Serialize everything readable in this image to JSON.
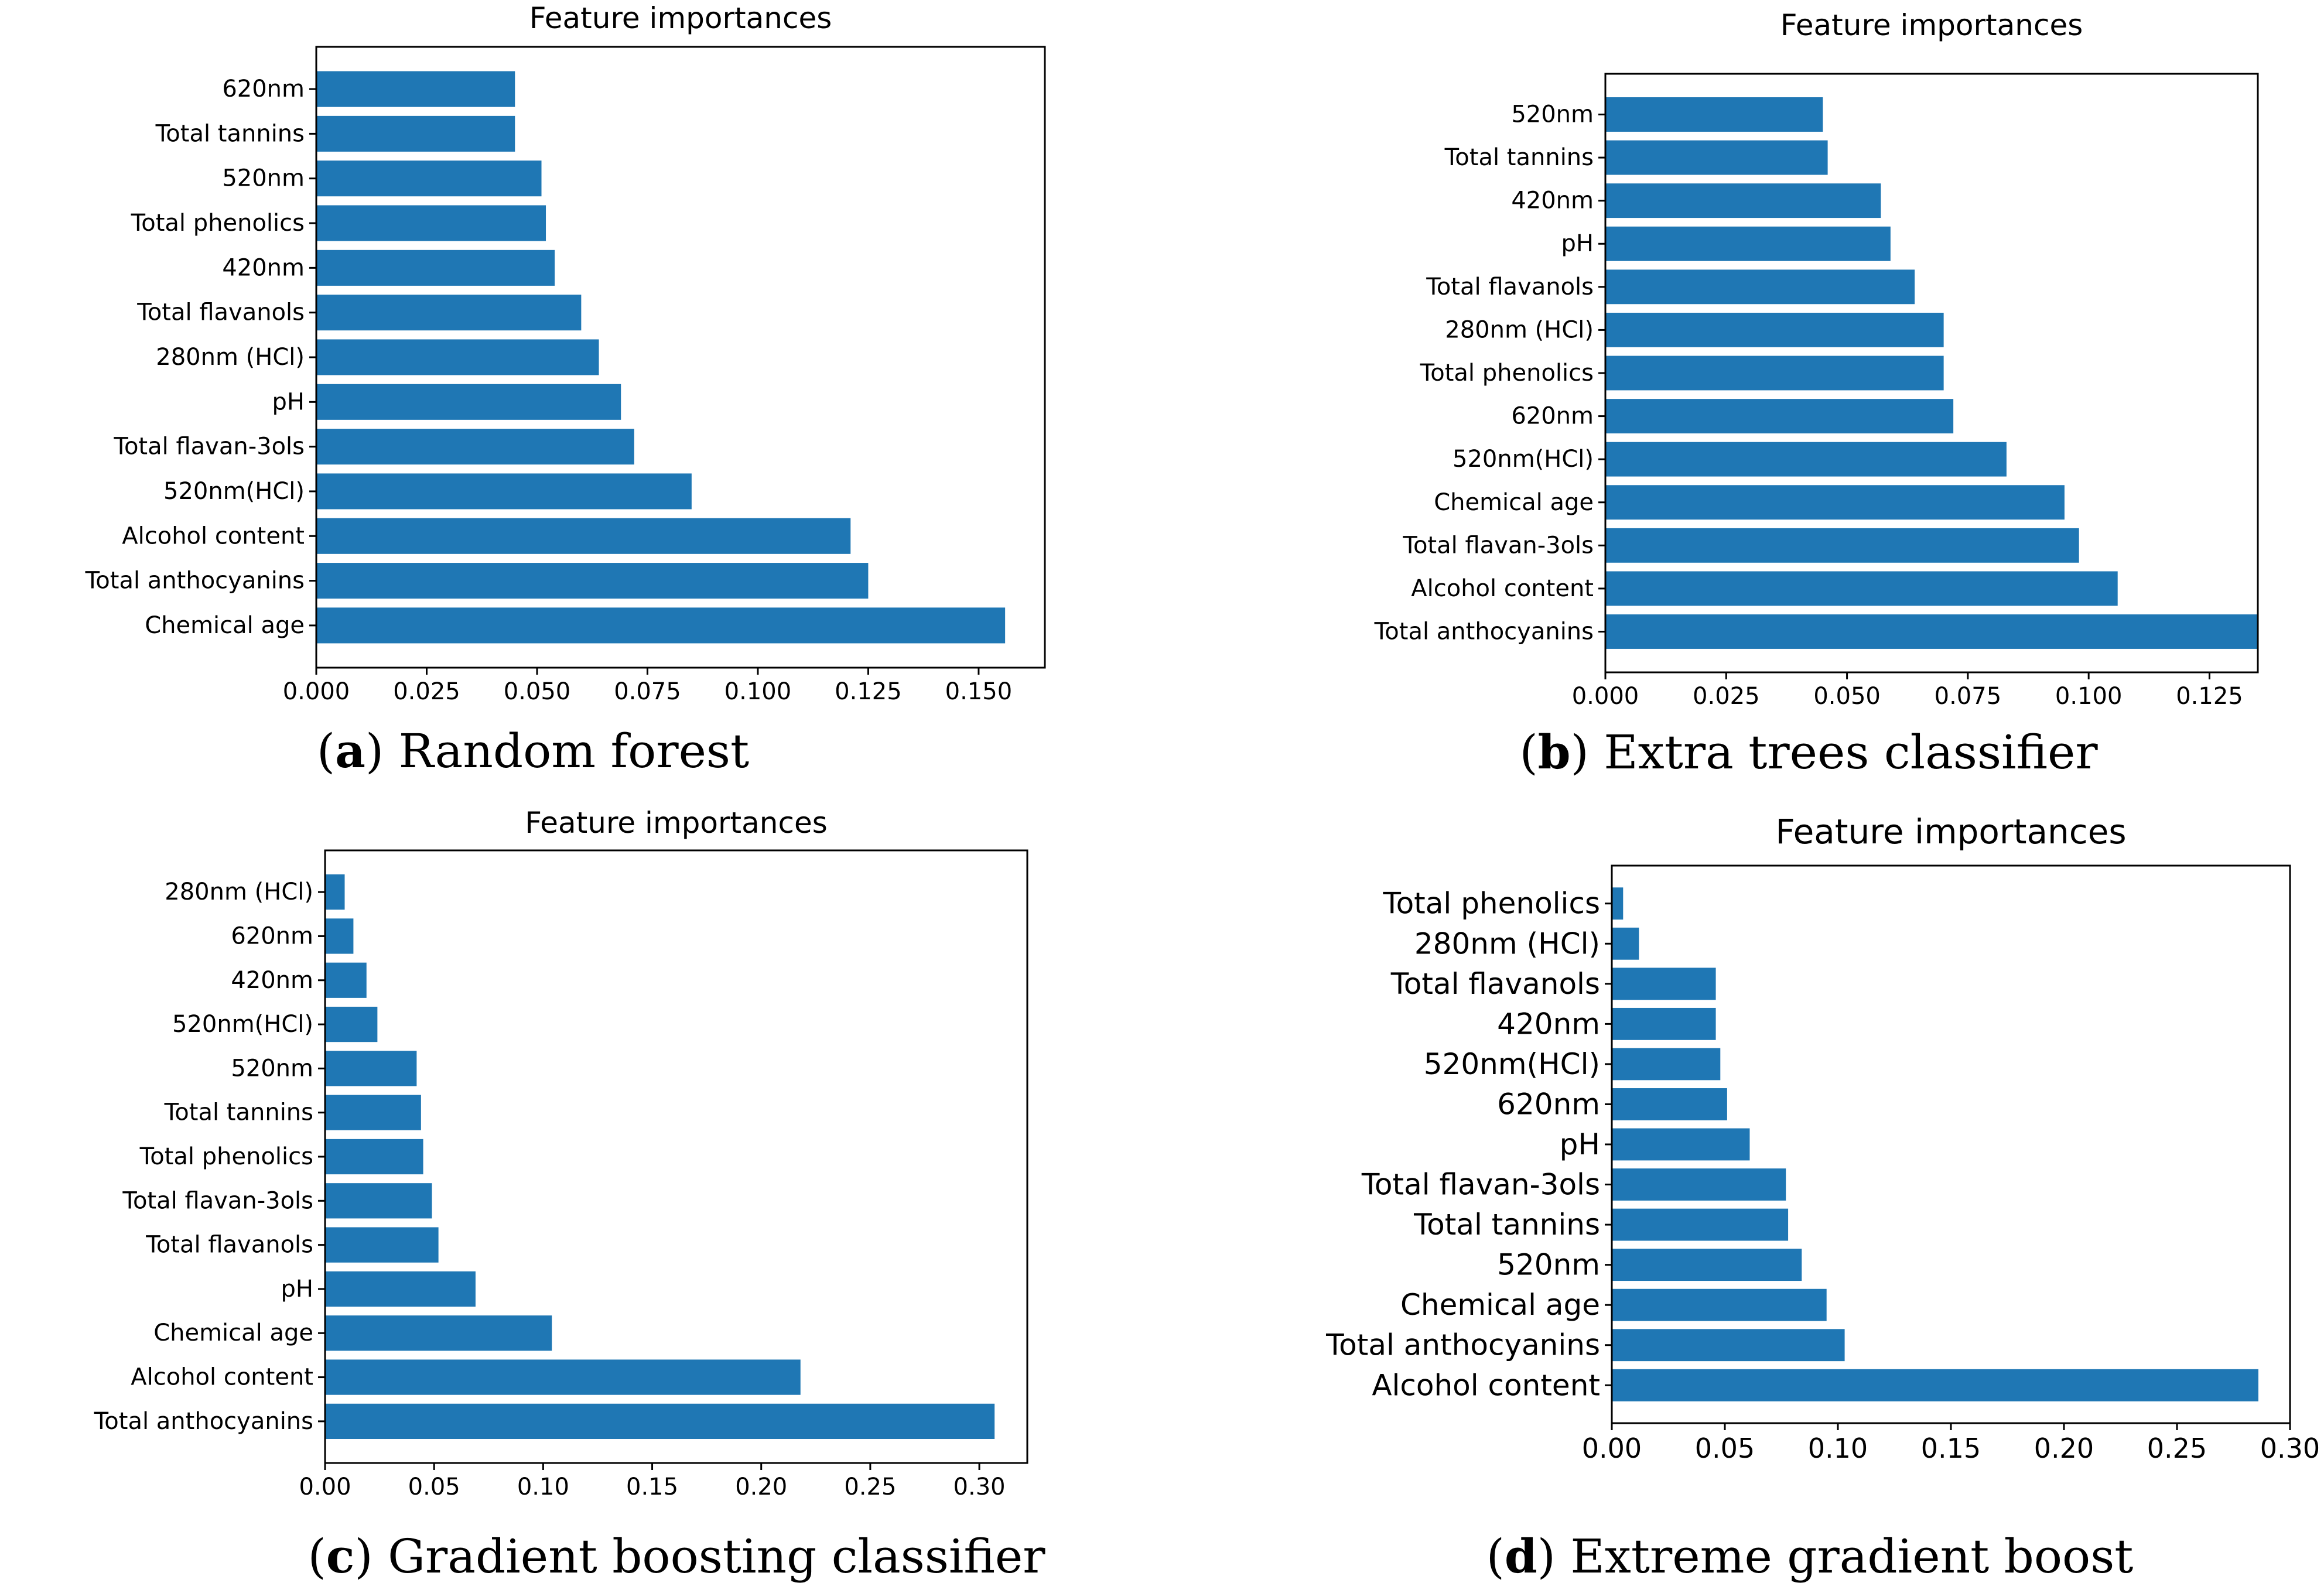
{
  "chart_data": [
    {
      "type": "bar",
      "orientation": "horizontal",
      "title": "Feature importances",
      "caption": {
        "letter": "a",
        "text": "Random forest"
      },
      "xlabel": "",
      "ylabel": "",
      "xlim": [
        0,
        0.165
      ],
      "xticks": [
        0.0,
        0.025,
        0.05,
        0.075,
        0.1,
        0.125,
        0.15
      ],
      "xtick_labels": [
        "0.000",
        "0.025",
        "0.050",
        "0.075",
        "0.100",
        "0.125",
        "0.150"
      ],
      "grid": false,
      "legend": "none",
      "bar_color": "#1f77b4",
      "categories": [
        "620nm",
        "Total tannins",
        "520nm",
        "Total phenolics",
        "420nm",
        "Total flavanols",
        "280nm (HCl)",
        "pH",
        "Total flavan-3ols",
        "520nm(HCl)",
        "Alcohol content",
        "Total anthocyanins",
        "Chemical age"
      ],
      "values": [
        0.045,
        0.045,
        0.051,
        0.052,
        0.054,
        0.06,
        0.064,
        0.069,
        0.072,
        0.085,
        0.121,
        0.125,
        0.156
      ]
    },
    {
      "type": "bar",
      "orientation": "horizontal",
      "title": "Feature importances",
      "caption": {
        "letter": "b",
        "text": "Extra trees classifier"
      },
      "xlabel": "",
      "ylabel": "",
      "xlim": [
        0,
        0.135
      ],
      "xticks": [
        0.0,
        0.025,
        0.05,
        0.075,
        0.1,
        0.125
      ],
      "xtick_labels": [
        "0.000",
        "0.025",
        "0.050",
        "0.075",
        "0.100",
        "0.125"
      ],
      "grid": false,
      "legend": "none",
      "bar_color": "#1f77b4",
      "categories": [
        "520nm",
        "Total tannins",
        "420nm",
        "pH",
        "Total flavanols",
        "280nm (HCl)",
        "Total phenolics",
        "620nm",
        "520nm(HCl)",
        "Chemical age",
        "Total flavan-3ols",
        "Alcohol content",
        "Total anthocyanins"
      ],
      "values": [
        0.045,
        0.046,
        0.057,
        0.059,
        0.064,
        0.07,
        0.07,
        0.072,
        0.083,
        0.095,
        0.098,
        0.106,
        0.135
      ]
    },
    {
      "type": "bar",
      "orientation": "horizontal",
      "title": "Feature importances",
      "caption": {
        "letter": "c",
        "text": "Gradient boosting classifier"
      },
      "xlabel": "",
      "ylabel": "",
      "xlim": [
        0,
        0.322
      ],
      "xticks": [
        0.0,
        0.05,
        0.1,
        0.15,
        0.2,
        0.25,
        0.3
      ],
      "xtick_labels": [
        "0.00",
        "0.05",
        "0.10",
        "0.15",
        "0.20",
        "0.25",
        "0.30"
      ],
      "grid": false,
      "legend": "none",
      "bar_color": "#1f77b4",
      "categories": [
        "280nm (HCl)",
        "620nm",
        "420nm",
        "520nm(HCl)",
        "520nm",
        "Total tannins",
        "Total phenolics",
        "Total flavan-3ols",
        "Total flavanols",
        "pH",
        "Chemical age",
        "Alcohol content",
        "Total anthocyanins"
      ],
      "values": [
        0.009,
        0.013,
        0.019,
        0.024,
        0.042,
        0.044,
        0.045,
        0.049,
        0.052,
        0.069,
        0.104,
        0.218,
        0.307
      ]
    },
    {
      "type": "bar",
      "orientation": "horizontal",
      "title": "Feature importances",
      "caption": {
        "letter": "d",
        "text": "Extreme gradient boost"
      },
      "xlabel": "",
      "ylabel": "",
      "xlim": [
        0,
        0.3
      ],
      "xticks": [
        0.0,
        0.05,
        0.1,
        0.15,
        0.2,
        0.25,
        0.3
      ],
      "xtick_labels": [
        "0.00",
        "0.05",
        "0.10",
        "0.15",
        "0.20",
        "0.25",
        "0.30"
      ],
      "grid": false,
      "legend": "none",
      "bar_color": "#1f77b4",
      "categories": [
        "Total phenolics",
        "280nm (HCl)",
        "Total flavanols",
        "420nm",
        "520nm(HCl)",
        "620nm",
        "pH",
        "Total flavan-3ols",
        "Total tannins",
        "520nm",
        "Chemical age",
        "Total anthocyanins",
        "Alcohol content"
      ],
      "values": [
        0.005,
        0.012,
        0.046,
        0.046,
        0.048,
        0.051,
        0.061,
        0.077,
        0.078,
        0.084,
        0.095,
        0.103,
        0.286
      ]
    }
  ]
}
